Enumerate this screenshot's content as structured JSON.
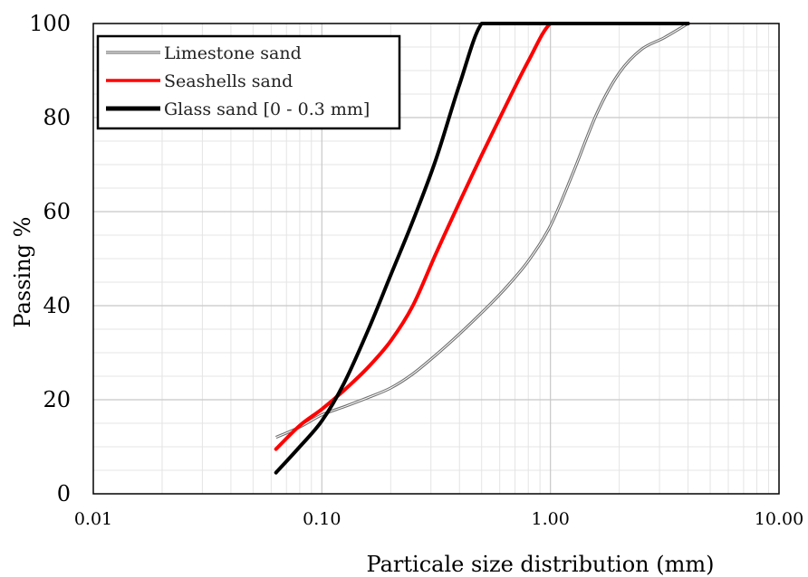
{
  "chart_data": {
    "type": "line",
    "title": "",
    "xlabel": "Particale size distribution (mm)",
    "ylabel": "Passing %",
    "x_scale": "log",
    "xlim": [
      0.01,
      10
    ],
    "ylim": [
      0,
      100
    ],
    "x_ticks": [
      "0.01",
      "0.10",
      "1.00",
      "10.00"
    ],
    "y_ticks": [
      "0",
      "20",
      "40",
      "60",
      "80",
      "100"
    ],
    "grid": true,
    "legend_position": "top-left",
    "series": [
      {
        "name": "Limestone sand",
        "color": "#707070",
        "style": "double-line",
        "x": [
          0.063,
          0.08,
          0.1,
          0.125,
          0.16,
          0.2,
          0.25,
          0.315,
          0.4,
          0.5,
          0.63,
          0.8,
          1.0,
          1.25,
          1.6,
          2.0,
          2.5,
          3.15,
          4.0
        ],
        "y": [
          12.0,
          14.2,
          16.8,
          18.5,
          20.5,
          22.5,
          25.5,
          29.5,
          34.0,
          38.5,
          43.5,
          49.5,
          57.0,
          68.0,
          81.0,
          89.5,
          94.5,
          97.0,
          100.0
        ]
      },
      {
        "name": "Seashells sand",
        "color": "#ff0000",
        "style": "solid",
        "x": [
          0.063,
          0.08,
          0.1,
          0.125,
          0.16,
          0.2,
          0.25,
          0.315,
          0.4,
          0.5,
          0.63,
          0.8,
          1.0,
          1.25,
          2.0,
          4.0
        ],
        "y": [
          9.5,
          14.5,
          18.0,
          22.0,
          27.0,
          32.5,
          40.0,
          51.0,
          62.0,
          72.0,
          82.0,
          92.0,
          100.0,
          100.0,
          100.0,
          100.0
        ]
      },
      {
        "name": "Glass sand [0 - 0.3 mm]",
        "color": "#000000",
        "style": "solid",
        "x": [
          0.063,
          0.08,
          0.1,
          0.125,
          0.16,
          0.2,
          0.25,
          0.315,
          0.4,
          0.5,
          0.63,
          1.0,
          2.0,
          4.0
        ],
        "y": [
          4.5,
          10.0,
          15.5,
          23.5,
          35.0,
          46.5,
          58.0,
          71.0,
          87.0,
          100.0,
          100.0,
          100.0,
          100.0,
          100.0
        ]
      }
    ]
  }
}
